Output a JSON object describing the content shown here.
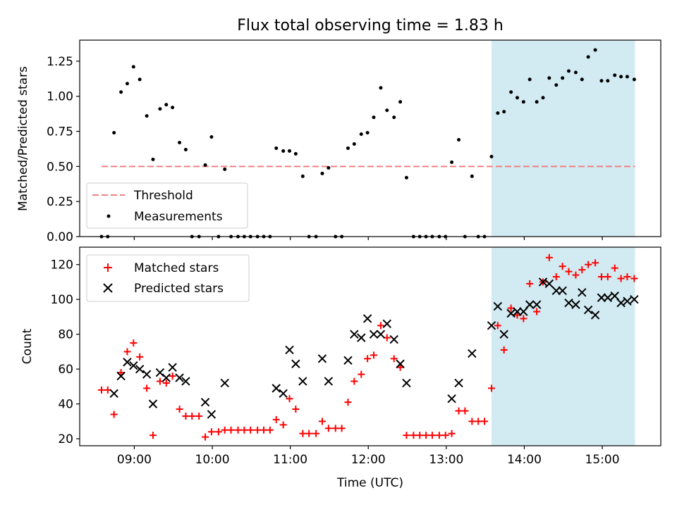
{
  "chart_data": [
    {
      "type": "scatter",
      "title": "Flux total observing time = 1.83 h",
      "xlabel": "",
      "ylabel": "Matched/Predicted stars",
      "xlim": [
        8.3,
        15.75
      ],
      "ylim": [
        0,
        1.4
      ],
      "yticks": [
        0.0,
        0.25,
        0.5,
        0.75,
        1.0,
        1.25
      ],
      "ytick_labels": [
        "0.00",
        "0.25",
        "0.50",
        "0.75",
        "1.00",
        "1.25"
      ],
      "shaded_region": {
        "x": [
          13.58,
          15.42
        ],
        "color": "#add8e6"
      },
      "legend": {
        "position": "lower-left",
        "entries": [
          "Threshold",
          "Measurements"
        ]
      },
      "series": [
        {
          "name": "Threshold",
          "kind": "dashed-line",
          "color": "#f08080",
          "x": [
            8.58,
            15.42
          ],
          "y": [
            0.5,
            0.5
          ]
        },
        {
          "name": "Measurements",
          "kind": "dot",
          "color": "#000000",
          "points": [
            [
              8.58,
              0.0
            ],
            [
              8.66,
              0.0
            ],
            [
              8.74,
              0.74
            ],
            [
              8.83,
              1.03
            ],
            [
              8.91,
              1.09
            ],
            [
              8.99,
              1.21
            ],
            [
              9.07,
              1.12
            ],
            [
              9.16,
              0.86
            ],
            [
              9.24,
              0.55
            ],
            [
              9.33,
              0.91
            ],
            [
              9.41,
              0.94
            ],
            [
              9.49,
              0.92
            ],
            [
              9.58,
              0.67
            ],
            [
              9.66,
              0.62
            ],
            [
              9.74,
              0.0
            ],
            [
              9.83,
              0.0
            ],
            [
              9.91,
              0.51
            ],
            [
              9.99,
              0.71
            ],
            [
              10.08,
              0.0
            ],
            [
              10.16,
              0.48
            ],
            [
              10.24,
              0.0
            ],
            [
              10.33,
              0.0
            ],
            [
              10.41,
              0.0
            ],
            [
              10.49,
              0.0
            ],
            [
              10.58,
              0.0
            ],
            [
              10.66,
              0.0
            ],
            [
              10.74,
              0.0
            ],
            [
              10.82,
              0.63
            ],
            [
              10.91,
              0.61
            ],
            [
              10.99,
              0.61
            ],
            [
              11.07,
              0.59
            ],
            [
              11.16,
              0.43
            ],
            [
              11.24,
              0.0
            ],
            [
              11.33,
              0.0
            ],
            [
              11.41,
              0.45
            ],
            [
              11.49,
              0.49
            ],
            [
              11.58,
              0.0
            ],
            [
              11.66,
              0.0
            ],
            [
              11.74,
              0.63
            ],
            [
              11.82,
              0.66
            ],
            [
              11.91,
              0.73
            ],
            [
              11.99,
              0.74
            ],
            [
              12.07,
              0.85
            ],
            [
              12.16,
              1.06
            ],
            [
              12.24,
              0.9
            ],
            [
              12.33,
              0.85
            ],
            [
              12.41,
              0.96
            ],
            [
              12.49,
              0.42
            ],
            [
              12.58,
              0.0
            ],
            [
              12.66,
              0.0
            ],
            [
              12.74,
              0.0
            ],
            [
              12.82,
              0.0
            ],
            [
              12.91,
              0.0
            ],
            [
              12.99,
              0.0
            ],
            [
              13.07,
              0.53
            ],
            [
              13.16,
              0.69
            ],
            [
              13.24,
              0.0
            ],
            [
              13.33,
              0.43
            ],
            [
              13.41,
              0.0
            ],
            [
              13.49,
              0.0
            ],
            [
              13.58,
              0.57
            ],
            [
              13.66,
              0.88
            ],
            [
              13.74,
              0.89
            ],
            [
              13.83,
              1.03
            ],
            [
              13.91,
              0.99
            ],
            [
              13.99,
              0.96
            ],
            [
              14.07,
              1.12
            ],
            [
              14.16,
              0.96
            ],
            [
              14.24,
              0.99
            ],
            [
              14.32,
              1.13
            ],
            [
              14.41,
              1.08
            ],
            [
              14.49,
              1.13
            ],
            [
              14.57,
              1.18
            ],
            [
              14.66,
              1.17
            ],
            [
              14.74,
              1.12
            ],
            [
              14.82,
              1.28
            ],
            [
              14.91,
              1.33
            ],
            [
              14.99,
              1.11
            ],
            [
              15.07,
              1.11
            ],
            [
              15.16,
              1.15
            ],
            [
              15.24,
              1.14
            ],
            [
              15.32,
              1.14
            ],
            [
              15.41,
              1.12
            ]
          ]
        }
      ]
    },
    {
      "type": "scatter",
      "title": "",
      "xlabel": "Time (UTC)",
      "ylabel": "Count",
      "xlim": [
        8.3,
        15.75
      ],
      "ylim": [
        16,
        130
      ],
      "xticks": [
        9,
        10,
        11,
        12,
        13,
        14,
        15
      ],
      "xtick_labels": [
        "09:00",
        "10:00",
        "11:00",
        "12:00",
        "13:00",
        "14:00",
        "15:00"
      ],
      "yticks": [
        20,
        40,
        60,
        80,
        100,
        120
      ],
      "ytick_labels": [
        "20",
        "40",
        "60",
        "80",
        "100",
        "120"
      ],
      "shaded_region": {
        "x": [
          13.58,
          15.42
        ],
        "color": "#add8e6"
      },
      "legend": {
        "position": "top-left",
        "entries": [
          "Matched stars",
          "Predicted stars"
        ]
      },
      "series": [
        {
          "name": "Matched stars",
          "kind": "plus",
          "color": "#ff0000",
          "points": [
            [
              8.58,
              48
            ],
            [
              8.66,
              48
            ],
            [
              8.74,
              34
            ],
            [
              8.83,
              58
            ],
            [
              8.91,
              70
            ],
            [
              8.99,
              75
            ],
            [
              9.07,
              67
            ],
            [
              9.16,
              49
            ],
            [
              9.24,
              22
            ],
            [
              9.33,
              53
            ],
            [
              9.41,
              52
            ],
            [
              9.49,
              56
            ],
            [
              9.58,
              37
            ],
            [
              9.66,
              33
            ],
            [
              9.74,
              33
            ],
            [
              9.83,
              33
            ],
            [
              9.91,
              21
            ],
            [
              9.99,
              24
            ],
            [
              10.08,
              24
            ],
            [
              10.16,
              25
            ],
            [
              10.24,
              25
            ],
            [
              10.33,
              25
            ],
            [
              10.41,
              25
            ],
            [
              10.49,
              25
            ],
            [
              10.58,
              25
            ],
            [
              10.66,
              25
            ],
            [
              10.74,
              25
            ],
            [
              10.82,
              31
            ],
            [
              10.91,
              28
            ],
            [
              10.99,
              43
            ],
            [
              11.07,
              37
            ],
            [
              11.16,
              23
            ],
            [
              11.24,
              23
            ],
            [
              11.33,
              23
            ],
            [
              11.41,
              30
            ],
            [
              11.49,
              26
            ],
            [
              11.58,
              26
            ],
            [
              11.66,
              26
            ],
            [
              11.74,
              41
            ],
            [
              11.82,
              53
            ],
            [
              11.91,
              57
            ],
            [
              11.99,
              66
            ],
            [
              12.07,
              68
            ],
            [
              12.16,
              85
            ],
            [
              12.24,
              78
            ],
            [
              12.33,
              66
            ],
            [
              12.41,
              61
            ],
            [
              12.49,
              22
            ],
            [
              12.58,
              22
            ],
            [
              12.66,
              22
            ],
            [
              12.74,
              22
            ],
            [
              12.82,
              22
            ],
            [
              12.91,
              22
            ],
            [
              12.99,
              22
            ],
            [
              13.07,
              23
            ],
            [
              13.16,
              36
            ],
            [
              13.24,
              36
            ],
            [
              13.33,
              30
            ],
            [
              13.41,
              30
            ],
            [
              13.49,
              30
            ],
            [
              13.58,
              49
            ],
            [
              13.66,
              85
            ],
            [
              13.74,
              71
            ],
            [
              13.83,
              95
            ],
            [
              13.91,
              91
            ],
            [
              13.99,
              89
            ],
            [
              14.07,
              109
            ],
            [
              14.16,
              93
            ],
            [
              14.24,
              110
            ],
            [
              14.32,
              124
            ],
            [
              14.41,
              113
            ],
            [
              14.49,
              119
            ],
            [
              14.57,
              116
            ],
            [
              14.66,
              114
            ],
            [
              14.74,
              117
            ],
            [
              14.82,
              120
            ],
            [
              14.91,
              121
            ],
            [
              14.99,
              113
            ],
            [
              15.07,
              113
            ],
            [
              15.16,
              118
            ],
            [
              15.24,
              112
            ],
            [
              15.32,
              113
            ],
            [
              15.41,
              112
            ]
          ]
        },
        {
          "name": "Predicted stars",
          "kind": "x",
          "color": "#000000",
          "points": [
            [
              8.74,
              46
            ],
            [
              8.83,
              56
            ],
            [
              8.91,
              64
            ],
            [
              8.99,
              62
            ],
            [
              9.07,
              60
            ],
            [
              9.16,
              57
            ],
            [
              9.24,
              40
            ],
            [
              9.33,
              58
            ],
            [
              9.41,
              55
            ],
            [
              9.49,
              61
            ],
            [
              9.58,
              55
            ],
            [
              9.66,
              53
            ],
            [
              9.91,
              41
            ],
            [
              9.99,
              34
            ],
            [
              10.16,
              52
            ],
            [
              10.82,
              49
            ],
            [
              10.91,
              46
            ],
            [
              10.99,
              71
            ],
            [
              11.07,
              63
            ],
            [
              11.16,
              53
            ],
            [
              11.41,
              66
            ],
            [
              11.49,
              53
            ],
            [
              11.74,
              65
            ],
            [
              11.82,
              80
            ],
            [
              11.91,
              78
            ],
            [
              11.99,
              89
            ],
            [
              12.07,
              80
            ],
            [
              12.16,
              80
            ],
            [
              12.24,
              86
            ],
            [
              12.33,
              77
            ],
            [
              12.41,
              63
            ],
            [
              12.49,
              52
            ],
            [
              13.07,
              43
            ],
            [
              13.16,
              52
            ],
            [
              13.33,
              69
            ],
            [
              13.58,
              85
            ],
            [
              13.66,
              96
            ],
            [
              13.74,
              80
            ],
            [
              13.83,
              92
            ],
            [
              13.91,
              93
            ],
            [
              13.99,
              93
            ],
            [
              14.07,
              97
            ],
            [
              14.16,
              97
            ],
            [
              14.24,
              110
            ],
            [
              14.32,
              109
            ],
            [
              14.41,
              105
            ],
            [
              14.49,
              105
            ],
            [
              14.57,
              98
            ],
            [
              14.66,
              97
            ],
            [
              14.74,
              104
            ],
            [
              14.82,
              94
            ],
            [
              14.91,
              91
            ],
            [
              14.99,
              101
            ],
            [
              15.07,
              101
            ],
            [
              15.16,
              102
            ],
            [
              15.24,
              98
            ],
            [
              15.32,
              99
            ],
            [
              15.41,
              100
            ]
          ]
        }
      ]
    }
  ]
}
